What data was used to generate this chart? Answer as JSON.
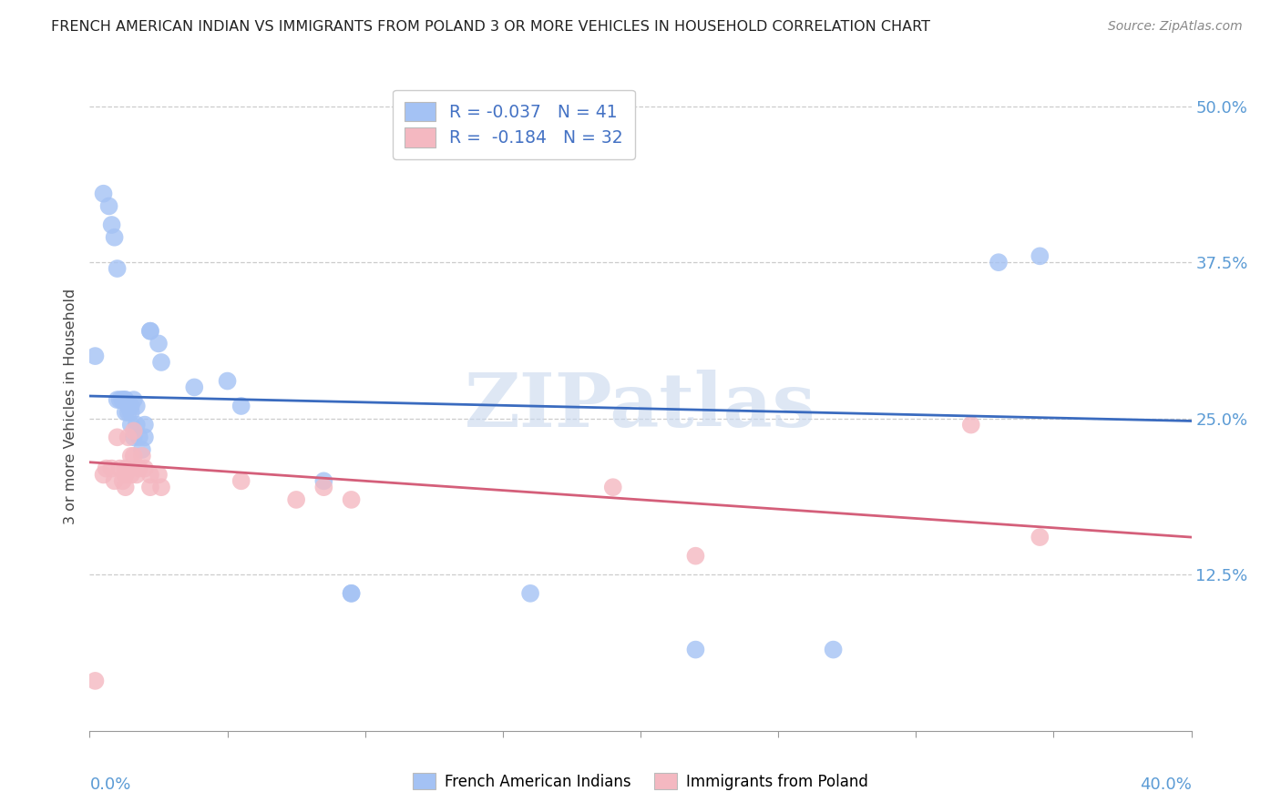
{
  "title": "FRENCH AMERICAN INDIAN VS IMMIGRANTS FROM POLAND 3 OR MORE VEHICLES IN HOUSEHOLD CORRELATION CHART",
  "source": "Source: ZipAtlas.com",
  "ylabel": "3 or more Vehicles in Household",
  "ytick_labels": [
    "12.5%",
    "25.0%",
    "37.5%",
    "50.0%"
  ],
  "ytick_values": [
    0.125,
    0.25,
    0.375,
    0.5
  ],
  "xtick_values": [
    0.0,
    0.05,
    0.1,
    0.15,
    0.2,
    0.25,
    0.3,
    0.35,
    0.4
  ],
  "xlim": [
    0.0,
    0.4
  ],
  "ylim": [
    0.0,
    0.52
  ],
  "blue_color": "#a4c2f4",
  "pink_color": "#f4b8c1",
  "blue_line_color": "#3a6bbf",
  "pink_line_color": "#d45f7a",
  "watermark": "ZIPatlas",
  "legend_line1": "R = -0.037   N = 41",
  "legend_line2": "R =  -0.184   N = 32",
  "bottom_legend_label1": "French American Indians",
  "bottom_legend_label2": "Immigrants from Poland",
  "blue_scatter_x": [
    0.002,
    0.005,
    0.007,
    0.008,
    0.009,
    0.01,
    0.01,
    0.011,
    0.012,
    0.012,
    0.013,
    0.013,
    0.013,
    0.014,
    0.014,
    0.015,
    0.015,
    0.015,
    0.016,
    0.016,
    0.017,
    0.017,
    0.018,
    0.019,
    0.02,
    0.02,
    0.022,
    0.022,
    0.025,
    0.026,
    0.038,
    0.05,
    0.055,
    0.085,
    0.095,
    0.095,
    0.16,
    0.22,
    0.27,
    0.33,
    0.345
  ],
  "blue_scatter_y": [
    0.3,
    0.43,
    0.42,
    0.405,
    0.395,
    0.37,
    0.265,
    0.265,
    0.265,
    0.265,
    0.265,
    0.265,
    0.255,
    0.26,
    0.255,
    0.26,
    0.255,
    0.245,
    0.265,
    0.235,
    0.26,
    0.245,
    0.235,
    0.225,
    0.235,
    0.245,
    0.32,
    0.32,
    0.31,
    0.295,
    0.275,
    0.28,
    0.26,
    0.2,
    0.11,
    0.11,
    0.11,
    0.065,
    0.065,
    0.375,
    0.38
  ],
  "pink_scatter_x": [
    0.002,
    0.005,
    0.006,
    0.008,
    0.009,
    0.01,
    0.011,
    0.012,
    0.013,
    0.013,
    0.013,
    0.014,
    0.015,
    0.015,
    0.016,
    0.016,
    0.017,
    0.018,
    0.019,
    0.02,
    0.022,
    0.022,
    0.025,
    0.026,
    0.055,
    0.075,
    0.085,
    0.095,
    0.19,
    0.22,
    0.32,
    0.345
  ],
  "pink_scatter_y": [
    0.04,
    0.205,
    0.21,
    0.21,
    0.2,
    0.235,
    0.21,
    0.2,
    0.21,
    0.205,
    0.195,
    0.235,
    0.22,
    0.205,
    0.24,
    0.22,
    0.205,
    0.21,
    0.22,
    0.21,
    0.205,
    0.195,
    0.205,
    0.195,
    0.2,
    0.185,
    0.195,
    0.185,
    0.195,
    0.14,
    0.245,
    0.155
  ],
  "blue_trend_x": [
    0.0,
    0.4
  ],
  "blue_trend_y": [
    0.268,
    0.248
  ],
  "pink_trend_x": [
    0.0,
    0.4
  ],
  "pink_trend_y": [
    0.215,
    0.155
  ]
}
